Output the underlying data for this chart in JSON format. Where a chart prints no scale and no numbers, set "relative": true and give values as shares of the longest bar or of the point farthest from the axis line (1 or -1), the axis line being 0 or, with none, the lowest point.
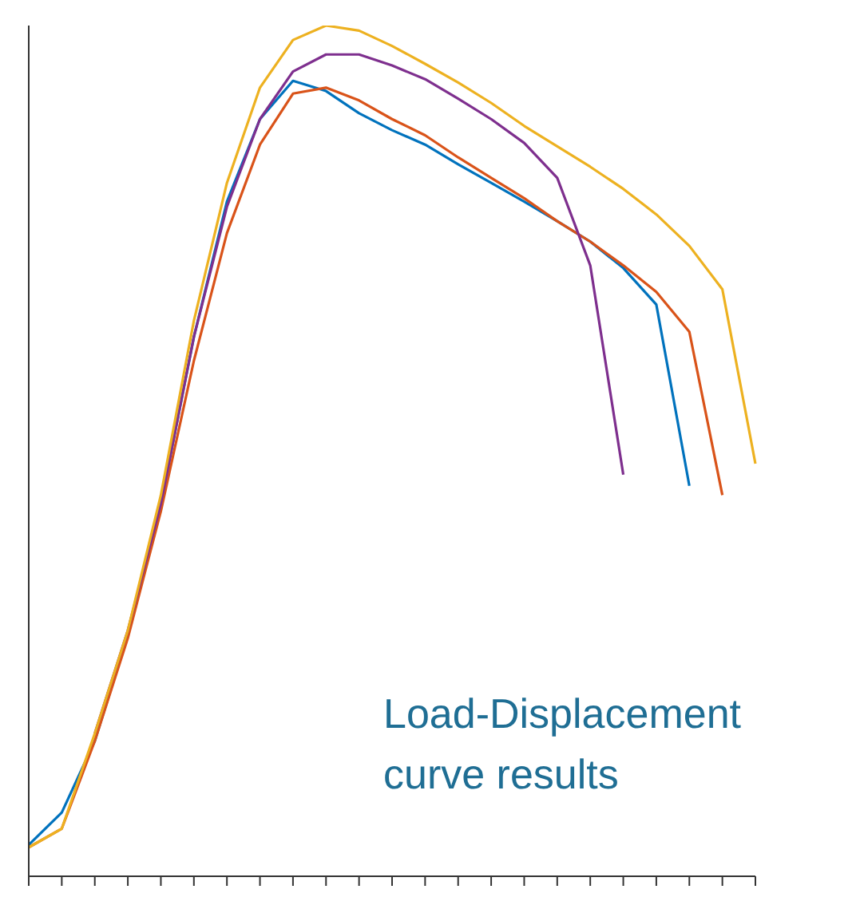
{
  "chart_data": {
    "type": "line",
    "relative": true,
    "grid": false,
    "legend": false,
    "marker": "none",
    "line_style": "solid",
    "categories": [
      null,
      null,
      null,
      null,
      null,
      null,
      null,
      null,
      null,
      null,
      null,
      null,
      null,
      null,
      null,
      null,
      null,
      null,
      null,
      null,
      null,
      null,
      null
    ],
    "series": [
      {
        "color": "#0072bd",
        "values": [
          0.037,
          0.075,
          0.159,
          0.284,
          0.438,
          0.634,
          0.793,
          0.89,
          0.935,
          0.923,
          0.897,
          0.877,
          0.86,
          0.837,
          0.815,
          0.793,
          0.77,
          0.746,
          0.715,
          0.672,
          0.459,
          null,
          null
        ]
      },
      {
        "color": "#d95319",
        "values": [
          0.034,
          0.056,
          0.159,
          0.28,
          0.429,
          0.606,
          0.756,
          0.86,
          0.92,
          0.927,
          0.912,
          0.89,
          0.871,
          0.845,
          0.821,
          0.797,
          0.77,
          0.746,
          0.718,
          0.687,
          0.64,
          0.448,
          null
        ]
      },
      {
        "color": "#7e2f8e",
        "values": [
          null,
          null,
          0.168,
          0.289,
          0.438,
          0.634,
          0.787,
          0.89,
          0.946,
          0.966,
          0.966,
          0.953,
          0.937,
          0.914,
          0.89,
          0.862,
          0.821,
          0.718,
          0.472,
          null,
          null,
          null,
          null
        ]
      },
      {
        "color": "#edb120",
        "values": [
          0.034,
          0.056,
          0.168,
          0.289,
          0.448,
          0.653,
          0.815,
          0.927,
          0.983,
          1,
          0.994,
          0.976,
          0.955,
          0.933,
          0.909,
          0.882,
          0.858,
          0.834,
          0.808,
          0.778,
          0.741,
          0.69,
          0.485
        ]
      }
    ],
    "annotations": [
      "Load-Displacement curve results"
    ]
  }
}
